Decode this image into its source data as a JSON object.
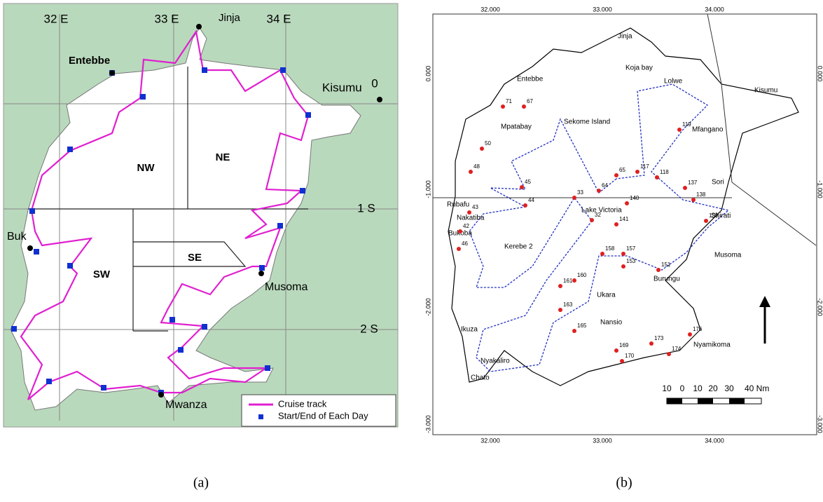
{
  "panel_a": {
    "grid_labels": [
      "32 E",
      "33 E",
      "34 E",
      "0",
      "1 S",
      "2 S"
    ],
    "places": [
      "Jinja",
      "Entebbe",
      "Kisumu",
      "Buk",
      "Musoma",
      "Mwanza"
    ],
    "regions": [
      "NW",
      "NE",
      "SW",
      "SE"
    ],
    "legend": [
      "Cruise track",
      "Start/End of Each Day"
    ],
    "caption": "(a)"
  },
  "panel_b": {
    "x_ticks": [
      "32.000",
      "33.000",
      "34.000"
    ],
    "y_ticks": [
      "0.000",
      "-1.000",
      "-2.000",
      "-3.000"
    ],
    "places": [
      "Jinja",
      "Entebbe",
      "Kisumu",
      "Rubafu",
      "Bukoba",
      "Nakatiba",
      "Mpatabay",
      "Sekome Island",
      "Lolwe",
      "Mfangano",
      "Sori",
      "Shirati",
      "Musoma",
      "Kerebe 2",
      "Lake Victoria",
      "Ukara",
      "Burungu",
      "Ikuza",
      "Nyakaliro",
      "Chato",
      "Nansio",
      "Nyamikoma",
      "Koja bay"
    ],
    "stations": [
      "65",
      "64",
      "33",
      "32",
      "140",
      "141",
      "139",
      "117",
      "118",
      "119",
      "137",
      "138",
      "45",
      "44",
      "43",
      "42",
      "46",
      "48",
      "50",
      "67",
      "71",
      "158",
      "157",
      "153",
      "151",
      "160",
      "161",
      "163",
      "165",
      "169",
      "170",
      "173",
      "174",
      "176"
    ],
    "scale": [
      "10",
      "0",
      "10",
      "20",
      "30",
      "40 Nm"
    ],
    "caption": "(b)"
  }
}
